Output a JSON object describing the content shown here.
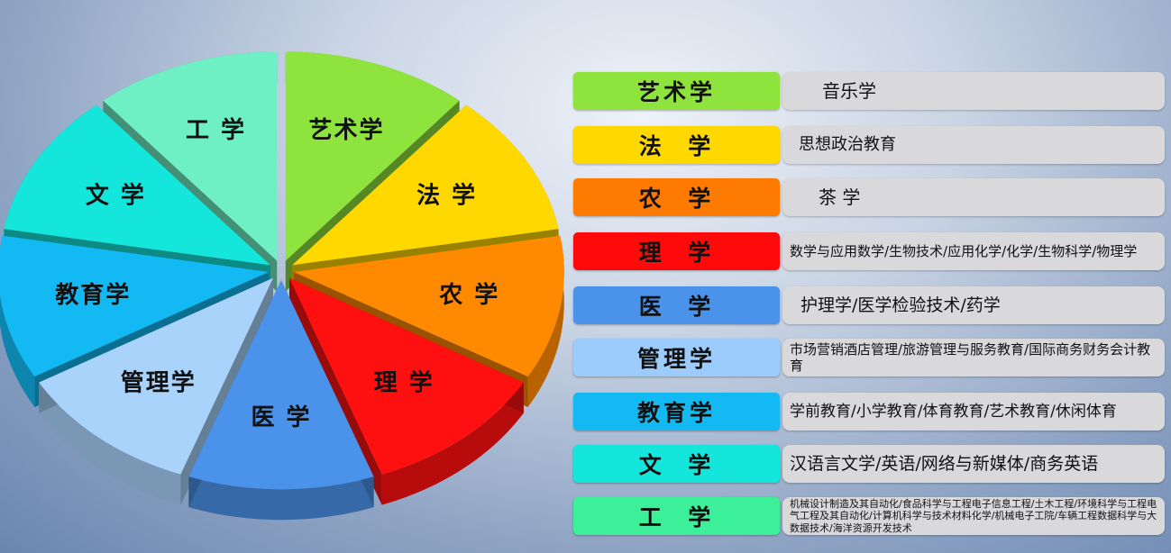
{
  "pie": {
    "slices": [
      {
        "label": "艺术学",
        "color": "#8ee33c"
      },
      {
        "label": "法 学",
        "color": "#ffd800"
      },
      {
        "label": "农 学",
        "color": "#ff8a00"
      },
      {
        "label": "理 学",
        "color": "#ff1010"
      },
      {
        "label": "医 学",
        "color": "#4b92ea"
      },
      {
        "label": "管理学",
        "color": "#a9d3fb"
      },
      {
        "label": "教育学",
        "color": "#12b9f2"
      },
      {
        "label": "文 学",
        "color": "#14e6dc"
      },
      {
        "label": "工 学",
        "color": "#6ff0c4"
      }
    ]
  },
  "table": {
    "rows": [
      {
        "category": "艺术学",
        "color": "#8ee33c",
        "majors": "音乐学",
        "size": "20px"
      },
      {
        "category": "法  学",
        "color": "#ffd800",
        "majors": "思想政治教育",
        "size": "18px"
      },
      {
        "category": "农  学",
        "color": "#ff7a00",
        "majors": "茶 学",
        "size": "20px"
      },
      {
        "category": "理  学",
        "color": "#ff0a0a",
        "majors": "数学与应用数学/生物技术/应用化学/化学/生物科学/物理学",
        "size": "15px"
      },
      {
        "category": "医  学",
        "color": "#4b92ea",
        "majors": "护理学/医学检验技术/药学",
        "size": "19px"
      },
      {
        "category": "管理学",
        "color": "#9cccfb",
        "majors": "市场营销酒店管理/旅游管理与服务教育/国际商务财务会计教育",
        "size": "15px"
      },
      {
        "category": "教育学",
        "color": "#12b9f2",
        "majors": "学前教育/小学教育/体育教育/艺术教育/休闲体育",
        "size": "17px"
      },
      {
        "category": "文  学",
        "color": "#14e6dc",
        "majors": "汉语言文学/英语/网络与新媒体/商务英语",
        "size": "19px"
      },
      {
        "category": "工  学",
        "color": "#3cf09a",
        "majors": "机械设计制造及其自动化/食品科学与工程电子信息工程/土木工程/环境科学与工程电气工程及其自动化/计算机科学与技术材料化学/机械电子工院/车辆工程数据科学与大数据技术/海洋资源开发技术",
        "size": "11px"
      }
    ]
  }
}
